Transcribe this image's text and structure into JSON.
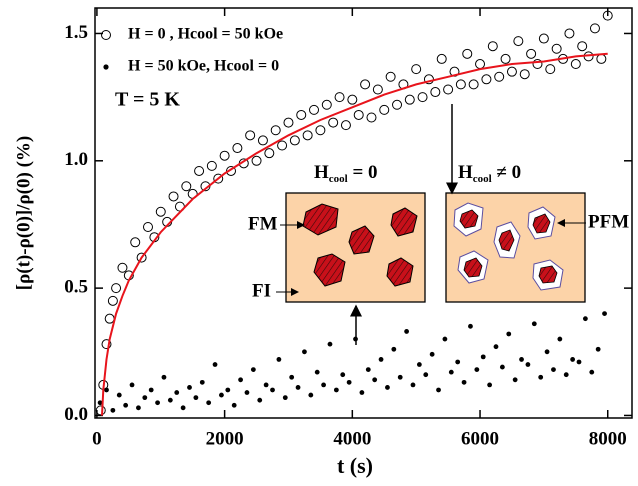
{
  "chart_data": {
    "type": "scatter",
    "x_label": "t (s)",
    "y_label": "[ρ(t)-ρ(0)]/ρ(0) (%)",
    "xlim": [
      -30,
      8380
    ],
    "ylim": [
      -0.01,
      1.6
    ],
    "xticks": [
      0,
      2000,
      4000,
      6000,
      8000
    ],
    "yticks": [
      {
        "value": 0,
        "label": "0.0"
      },
      {
        "value": 0.5,
        "label": "0.5"
      },
      {
        "value": 1,
        "label": "1.0"
      },
      {
        "value": 1.5,
        "label": "1.5"
      }
    ],
    "grid": false,
    "series": [
      {
        "name": "H = 0 , Hcool = 50 kOe",
        "marker": "open-circle",
        "color": "#000000",
        "x": [
          60,
          100,
          150,
          200,
          250,
          300,
          400,
          500,
          600,
          700,
          800,
          900,
          1000,
          1100,
          1200,
          1300,
          1400,
          1500,
          1600,
          1700,
          1800,
          1900,
          2000,
          2100,
          2200,
          2300,
          2400,
          2500,
          2600,
          2700,
          2800,
          2900,
          3000,
          3100,
          3200,
          3300,
          3400,
          3500,
          3600,
          3700,
          3800,
          3900,
          4000,
          4100,
          4200,
          4300,
          4400,
          4500,
          4600,
          4700,
          4800,
          4900,
          5000,
          5100,
          5200,
          5300,
          5400,
          5500,
          5600,
          5700,
          5800,
          5900,
          6000,
          6100,
          6200,
          6300,
          6400,
          6500,
          6600,
          6700,
          6800,
          6900,
          7000,
          7100,
          7200,
          7300,
          7400,
          7500,
          7600,
          7700,
          7800,
          7900,
          8000
        ],
        "values": [
          0.02,
          0.12,
          0.28,
          0.38,
          0.45,
          0.5,
          0.58,
          0.55,
          0.68,
          0.62,
          0.74,
          0.7,
          0.8,
          0.76,
          0.86,
          0.82,
          0.9,
          0.87,
          0.96,
          0.9,
          0.98,
          0.93,
          1.02,
          0.96,
          1.05,
          0.99,
          1.1,
          1.0,
          1.08,
          1.03,
          1.12,
          1.06,
          1.15,
          1.08,
          1.18,
          1.1,
          1.2,
          1.12,
          1.22,
          1.15,
          1.25,
          1.14,
          1.24,
          1.18,
          1.3,
          1.17,
          1.28,
          1.2,
          1.33,
          1.22,
          1.3,
          1.24,
          1.36,
          1.25,
          1.32,
          1.27,
          1.4,
          1.28,
          1.35,
          1.3,
          1.42,
          1.3,
          1.38,
          1.32,
          1.45,
          1.33,
          1.4,
          1.35,
          1.47,
          1.34,
          1.42,
          1.38,
          1.48,
          1.36,
          1.44,
          1.4,
          1.5,
          1.38,
          1.45,
          1.41,
          1.52,
          1.4,
          1.57
        ]
      },
      {
        "name": "H = 50 kOe, Hcool = 0",
        "marker": "dot",
        "color": "#000000",
        "x": [
          50,
          150,
          250,
          350,
          450,
          550,
          650,
          750,
          850,
          950,
          1050,
          1150,
          1250,
          1350,
          1450,
          1550,
          1650,
          1750,
          1850,
          1950,
          2050,
          2150,
          2250,
          2350,
          2450,
          2550,
          2650,
          2750,
          2850,
          2950,
          3050,
          3150,
          3250,
          3350,
          3450,
          3550,
          3650,
          3750,
          3850,
          3950,
          4050,
          4150,
          4250,
          4350,
          4450,
          4550,
          4650,
          4750,
          4850,
          4950,
          5050,
          5150,
          5250,
          5350,
          5450,
          5550,
          5650,
          5750,
          5850,
          5950,
          6050,
          6150,
          6250,
          6350,
          6450,
          6550,
          6650,
          6750,
          6850,
          6950,
          7050,
          7150,
          7250,
          7350,
          7450,
          7550,
          7650,
          7750,
          7850,
          7950
        ],
        "values": [
          0.05,
          0.1,
          0.02,
          0.08,
          0.04,
          0.12,
          0.03,
          0.07,
          0.1,
          0.05,
          0.15,
          0.06,
          0.09,
          0.03,
          0.11,
          0.07,
          0.13,
          0.05,
          0.2,
          0.08,
          0.1,
          0.04,
          0.14,
          0.09,
          0.18,
          0.06,
          0.12,
          0.1,
          0.22,
          0.07,
          0.15,
          0.11,
          0.25,
          0.08,
          0.17,
          0.12,
          0.28,
          0.1,
          0.16,
          0.13,
          0.3,
          0.09,
          0.18,
          0.14,
          0.22,
          0.11,
          0.26,
          0.15,
          0.33,
          0.12,
          0.2,
          0.16,
          0.24,
          0.1,
          0.3,
          0.17,
          0.21,
          0.13,
          0.35,
          0.18,
          0.23,
          0.12,
          0.27,
          0.19,
          0.32,
          0.14,
          0.22,
          0.2,
          0.36,
          0.15,
          0.25,
          0.18,
          0.3,
          0.16,
          0.22,
          0.21,
          0.38,
          0.17,
          0.26,
          0.4
        ]
      }
    ],
    "fit": {
      "color": "#e8141c",
      "x": [
        80,
        100,
        150,
        200,
        300,
        400,
        500,
        700,
        1000,
        1500,
        2000,
        2500,
        3000,
        3500,
        4000,
        4500,
        5000,
        5500,
        6000,
        6500,
        7000,
        7500,
        8000
      ],
      "values": [
        0,
        0.1,
        0.22,
        0.3,
        0.4,
        0.47,
        0.53,
        0.62,
        0.72,
        0.85,
        0.95,
        1.03,
        1.1,
        1.16,
        1.21,
        1.26,
        1.3,
        1.33,
        1.36,
        1.38,
        1.39,
        1.41,
        1.42
      ]
    },
    "temperature_label": "T = 5 K",
    "inset_left_title": {
      "symbol": "H",
      "sub": "cool",
      "rest": " = 0"
    },
    "inset_right_title": {
      "symbol": "H",
      "sub": "cool",
      "rest": " ≠ 0"
    },
    "inset_labels": {
      "fm": "FM",
      "fi": "FI",
      "pfm": "PFM"
    }
  }
}
